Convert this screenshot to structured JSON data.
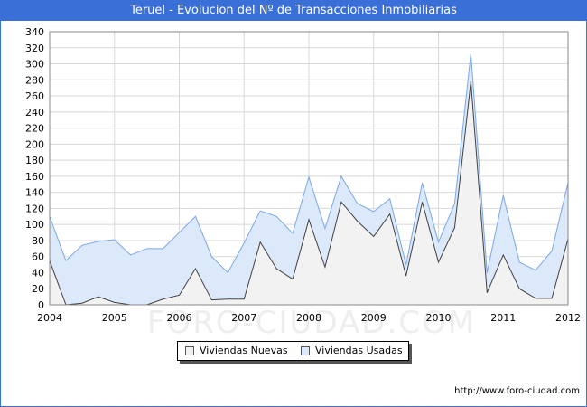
{
  "title": "Teruel - Evolucion del Nº de Transacciones Inmobiliarias",
  "watermark": "FORO-CIUDAD.COM",
  "url": "http://www.foro-ciudad.com",
  "colors": {
    "title_bg": "#3a6fd8",
    "nuevas_fill": "#f2f2f2",
    "nuevas_line": "#404040",
    "usadas_fill": "#dce9fb",
    "usadas_line": "#7aa7e6"
  },
  "legend": {
    "nuevas": "Viviendas Nuevas",
    "usadas": "Viviendas Usadas"
  },
  "chart_data": {
    "type": "area",
    "title": "Teruel - Evolucion del Nº de Transacciones Inmobiliarias",
    "x_ticks": [
      "2004",
      "2005",
      "2006",
      "2007",
      "2008",
      "2009",
      "2010",
      "2011",
      "2012"
    ],
    "y_ticks": [
      0,
      20,
      40,
      60,
      80,
      100,
      120,
      140,
      160,
      180,
      200,
      220,
      240,
      260,
      280,
      300,
      320,
      340
    ],
    "xlim": [
      2004,
      2012
    ],
    "ylim": [
      0,
      340
    ],
    "grid": true,
    "legend_position": "bottom",
    "x": [
      2004,
      2004.25,
      2004.5,
      2004.75,
      2005,
      2005.25,
      2005.5,
      2005.75,
      2006,
      2006.25,
      2006.5,
      2006.75,
      2007,
      2007.25,
      2007.5,
      2007.75,
      2008,
      2008.25,
      2008.5,
      2008.75,
      2009,
      2009.25,
      2009.5,
      2009.75,
      2010,
      2010.25,
      2010.5,
      2010.75,
      2011,
      2011.25,
      2011.5,
      2011.75,
      2012
    ],
    "series": [
      {
        "name": "Viviendas Nuevas",
        "values": [
          55,
          0,
          2,
          10,
          3,
          0,
          0,
          7,
          12,
          45,
          6,
          7,
          7,
          78,
          45,
          32,
          106,
          47,
          128,
          104,
          85,
          113,
          36,
          128,
          53,
          96,
          278,
          15,
          62,
          20,
          8,
          8,
          82
        ]
      },
      {
        "name": "Viviendas Usadas",
        "values": [
          110,
          55,
          74,
          79,
          81,
          62,
          70,
          70,
          90,
          110,
          60,
          40,
          77,
          117,
          110,
          89,
          159,
          95,
          160,
          126,
          116,
          132,
          50,
          152,
          78,
          126,
          313,
          40,
          136,
          53,
          43,
          67,
          152
        ]
      }
    ]
  }
}
